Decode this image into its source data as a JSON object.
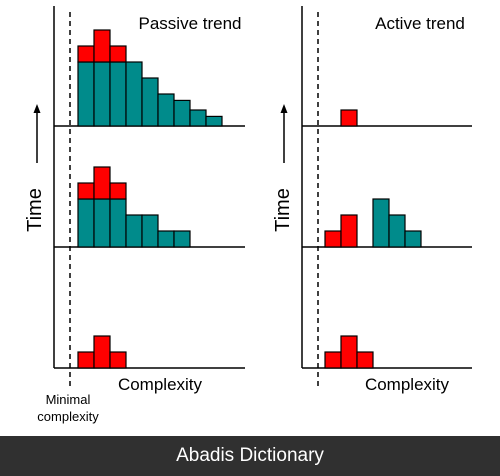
{
  "colors": {
    "new_bar": "#ff0000",
    "old_bar": "#008b8b",
    "axis": "#000000",
    "footer_bg": "#303030"
  },
  "panels": [
    {
      "title": "Passive trend",
      "x_label": "Complexity",
      "y_label": "Time",
      "rows": [
        {
          "teal": [
            0,
            0,
            0,
            0,
            0,
            0,
            0,
            0,
            0
          ],
          "red": [
            1,
            2,
            1,
            0,
            0,
            0,
            0,
            0,
            0
          ]
        },
        {
          "teal": [
            3,
            3,
            3,
            2,
            2,
            1,
            1,
            0,
            0
          ],
          "red": [
            1,
            2,
            1,
            0,
            0,
            0,
            0,
            0,
            0
          ]
        },
        {
          "teal": [
            4,
            4,
            4,
            4,
            3,
            2,
            1.6,
            1,
            0.6
          ],
          "red": [
            1,
            2,
            1,
            0,
            0,
            0,
            0,
            0,
            0
          ]
        }
      ]
    },
    {
      "title": "Active trend",
      "x_label": "Complexity",
      "y_label": "Time",
      "rows": [
        {
          "teal": [
            0,
            0,
            0,
            0,
            0,
            0,
            0
          ],
          "red": [
            1,
            2,
            1,
            0,
            0,
            0,
            0
          ]
        },
        {
          "teal": [
            0,
            0,
            0,
            3,
            2,
            1,
            0
          ],
          "red": [
            1,
            2,
            0,
            0,
            0,
            0,
            0
          ]
        },
        {
          "teal": [
            0,
            0,
            0,
            0,
            0,
            0,
            0
          ],
          "red": [
            0,
            1,
            0,
            0,
            0,
            0,
            0
          ]
        }
      ]
    }
  ],
  "minimal_label": [
    "Minimal",
    "complexity"
  ],
  "footer_text": "Abadis Dictionary"
}
